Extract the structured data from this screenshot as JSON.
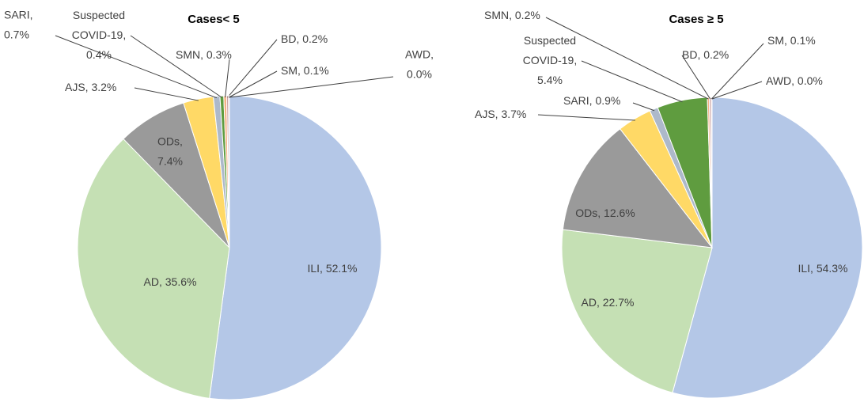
{
  "chart_data": [
    {
      "type": "pie",
      "title": "Cases< 5",
      "values": [
        52.1,
        35.6,
        7.4,
        3.2,
        0.7,
        0.4,
        0.3,
        0.2,
        0.1,
        0.0
      ],
      "value_labels": [
        "ILI, 52.1%",
        "AD, 35.6%",
        "ODs,\n7.4%",
        "AJS, 3.2%",
        "SARI,\n0.7%",
        "Suspected\nCOVID-19,\n0.4%",
        "SMN, 0.3%",
        "BD, 0.2%",
        "SM, 0.1%",
        "AWD,\n0.0%"
      ],
      "colors": [
        "#b4c7e7",
        "#c5e0b4",
        "#9a9a9a",
        "#ffd966",
        "#adb9ca",
        "#5f9c3f",
        "#f4b183",
        "#c9a0a0",
        "#e8a0a0",
        "#8faadc"
      ]
    },
    {
      "type": "pie",
      "title": "Cases ≥ 5",
      "values": [
        54.3,
        22.7,
        12.6,
        3.7,
        0.9,
        5.4,
        0.2,
        0.2,
        0.1,
        0.0
      ],
      "value_labels": [
        "ILI, 54.3%",
        "AD, 22.7%",
        "ODs, 12.6%",
        "AJS, 3.7%",
        "SARI, 0.9%",
        "Suspected\nCOVID-19,\n5.4%",
        "SMN, 0.2%",
        "BD, 0.2%",
        "SM, 0.1%",
        "AWD, 0.0%"
      ],
      "colors": [
        "#b4c7e7",
        "#c5e0b4",
        "#9a9a9a",
        "#ffd966",
        "#adb9ca",
        "#5f9c3f",
        "#f4b183",
        "#c9a0a0",
        "#e8a0a0",
        "#8faadc"
      ]
    }
  ]
}
